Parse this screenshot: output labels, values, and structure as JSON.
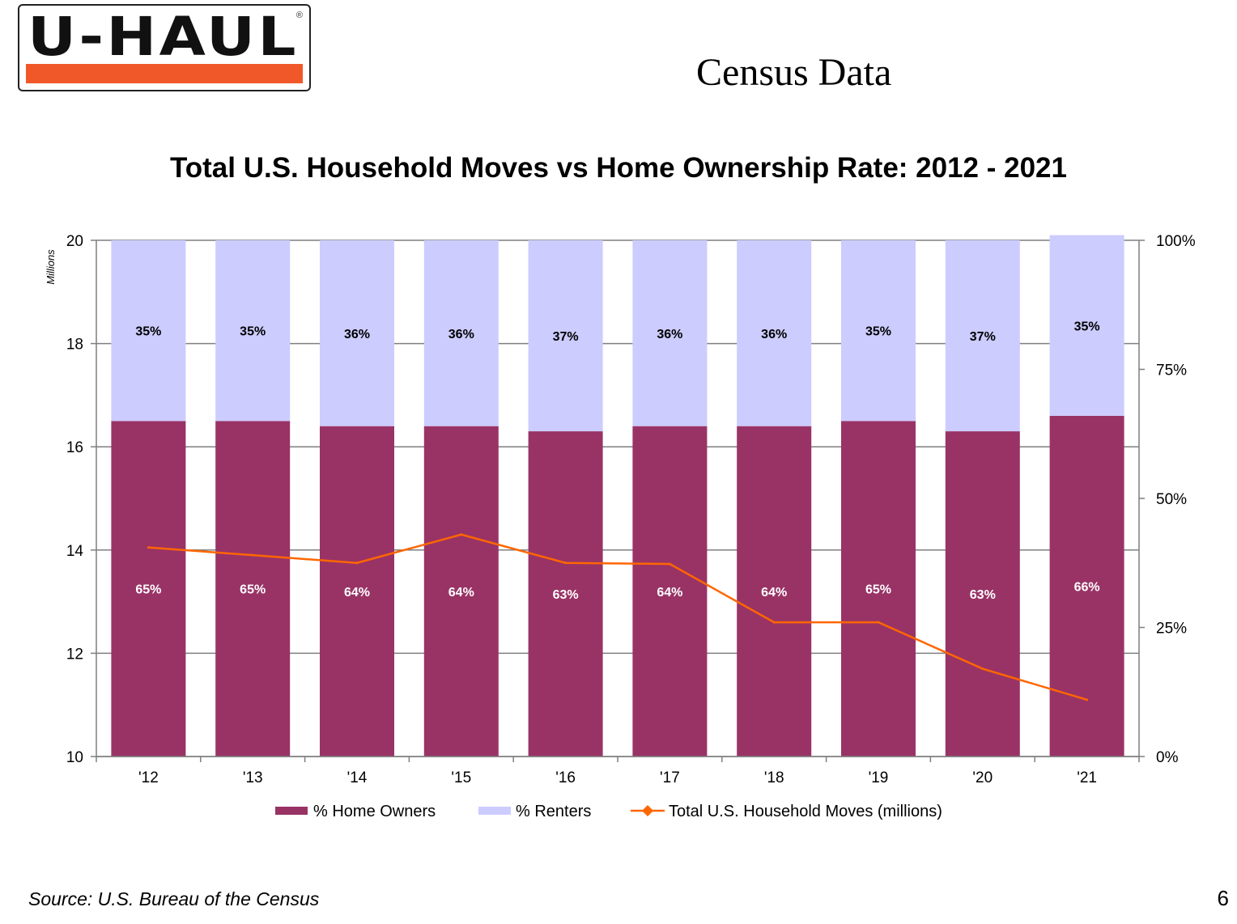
{
  "logo": {
    "text": "U-HAUL",
    "registered": "®",
    "bar_color": "#f0582a"
  },
  "page_title": "Census Data",
  "footer": {
    "source": "Source: U.S. Bureau of the Census",
    "page_number": "6"
  },
  "chart_data": {
    "type": "bar",
    "stacked": true,
    "title": "Total U.S. Household Moves vs Home Ownership Rate: 2012 - 2021",
    "categories": [
      "'12",
      "'13",
      "'14",
      "'15",
      "'16",
      "'17",
      "'18",
      "'19",
      "'20",
      "'21"
    ],
    "series": [
      {
        "name": "% Home Owners",
        "axis": "right",
        "color": "#993366",
        "label_color": "#ffffff",
        "values": [
          65,
          65,
          64,
          64,
          63,
          64,
          64,
          65,
          63,
          66
        ],
        "labels": [
          "65%",
          "65%",
          "64%",
          "64%",
          "63%",
          "64%",
          "64%",
          "65%",
          "63%",
          "66%"
        ]
      },
      {
        "name": "% Renters",
        "axis": "right",
        "color": "#ccccff",
        "label_color": "#000000",
        "values": [
          35,
          35,
          36,
          36,
          37,
          36,
          36,
          35,
          37,
          35
        ],
        "labels": [
          "35%",
          "35%",
          "36%",
          "36%",
          "37%",
          "36%",
          "36%",
          "35%",
          "37%",
          "35%"
        ]
      },
      {
        "name": "Total U.S. Household Moves (millions)",
        "type": "line",
        "axis": "left",
        "color": "#ff6600",
        "marker": "diamond",
        "values": [
          14.05,
          13.9,
          13.75,
          14.3,
          13.75,
          13.73,
          12.6,
          12.6,
          11.7,
          11.1
        ]
      }
    ],
    "y_left": {
      "label": "Millions",
      "min": 10,
      "max": 20,
      "ticks": [
        "10",
        "12",
        "14",
        "16",
        "18",
        "20"
      ]
    },
    "y_right": {
      "min": 0,
      "max": 100,
      "ticks": [
        "0%",
        "25%",
        "50%",
        "75%",
        "100%"
      ]
    },
    "grid": true,
    "legend": "bottom"
  }
}
